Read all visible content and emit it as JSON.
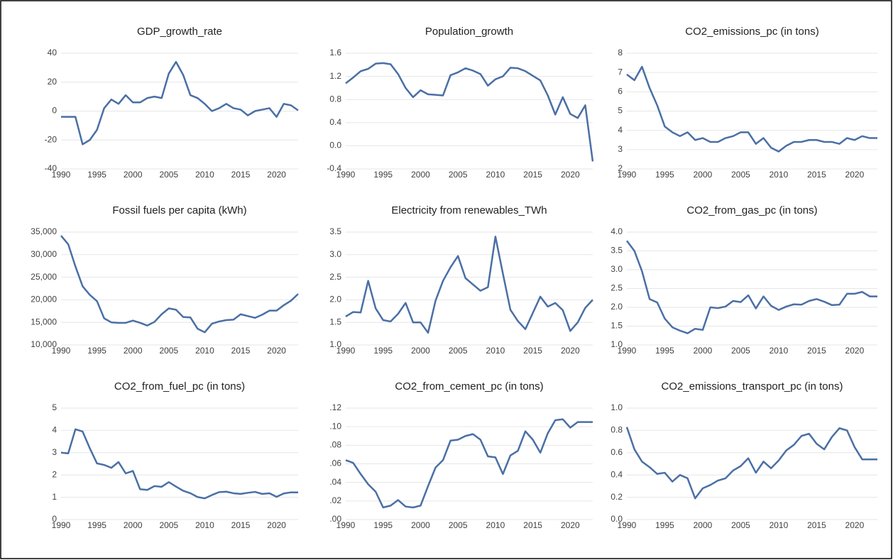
{
  "chart_data": [
    {
      "type": "line",
      "title": "GDP_growth_rate",
      "xlim": [
        1990,
        2023
      ],
      "xticks": [
        1990,
        1995,
        2000,
        2005,
        2010,
        2015,
        2020
      ],
      "ylim": [
        -40,
        40
      ],
      "yticks": [
        -40,
        -20,
        0,
        20,
        40
      ],
      "grid": true,
      "color": "#4a6fa5",
      "x": [
        1990,
        1991,
        1992,
        1993,
        1994,
        1995,
        1996,
        1997,
        1998,
        1999,
        2000,
        2001,
        2002,
        2003,
        2004,
        2005,
        2006,
        2007,
        2008,
        2009,
        2010,
        2011,
        2012,
        2013,
        2014,
        2015,
        2016,
        2017,
        2018,
        2019,
        2020,
        2021,
        2022,
        2023
      ],
      "values": [
        -4,
        -4,
        -4,
        -23,
        -20,
        -13,
        2,
        8,
        5,
        11,
        6,
        6,
        9,
        10,
        9,
        26,
        34,
        25,
        11,
        9,
        5,
        0,
        2,
        5,
        2,
        1,
        -3,
        0,
        1,
        2,
        -4,
        5,
        4,
        0.5
      ]
    },
    {
      "type": "line",
      "title": "Population_growth",
      "xlim": [
        1990,
        2023
      ],
      "xticks": [
        1990,
        1995,
        2000,
        2005,
        2010,
        2015,
        2020
      ],
      "ylim": [
        -0.4,
        1.6
      ],
      "yticks": [
        -0.4,
        {
          "value": 0,
          "label": "0.0"
        },
        0.4,
        0.8,
        1.2,
        1.6
      ],
      "grid": true,
      "color": "#4a6fa5",
      "x": [
        1990,
        1991,
        1992,
        1993,
        1994,
        1995,
        1996,
        1997,
        1998,
        1999,
        2000,
        2001,
        2002,
        2003,
        2004,
        2005,
        2006,
        2007,
        2008,
        2009,
        2010,
        2011,
        2012,
        2013,
        2014,
        2015,
        2016,
        2017,
        2018,
        2019,
        2020,
        2021,
        2022,
        2023
      ],
      "values": [
        1.08,
        1.18,
        1.29,
        1.33,
        1.42,
        1.43,
        1.41,
        1.24,
        1.0,
        0.84,
        0.96,
        0.89,
        0.88,
        0.87,
        1.22,
        1.27,
        1.34,
        1.3,
        1.24,
        1.04,
        1.15,
        1.2,
        1.35,
        1.34,
        1.29,
        1.21,
        1.13,
        0.87,
        0.54,
        0.84,
        0.55,
        0.48,
        0.7,
        -0.27
      ]
    },
    {
      "type": "line",
      "title": "CO2_emissions_pc (in tons)",
      "xlim": [
        1990,
        2023
      ],
      "xticks": [
        1990,
        1995,
        2000,
        2005,
        2010,
        2015,
        2020
      ],
      "ylim": [
        2,
        8
      ],
      "yticks": [
        2,
        3,
        4,
        5,
        6,
        7,
        8
      ],
      "grid": true,
      "color": "#4a6fa5",
      "x": [
        1990,
        1991,
        1992,
        1993,
        1994,
        1995,
        1996,
        1997,
        1998,
        1999,
        2000,
        2001,
        2002,
        2003,
        2004,
        2005,
        2006,
        2007,
        2008,
        2009,
        2010,
        2011,
        2012,
        2013,
        2014,
        2015,
        2016,
        2017,
        2018,
        2019,
        2020,
        2021,
        2022,
        2023
      ],
      "values": [
        6.9,
        6.6,
        7.3,
        6.2,
        5.3,
        4.2,
        3.9,
        3.7,
        3.9,
        3.5,
        3.6,
        3.4,
        3.4,
        3.6,
        3.7,
        3.9,
        3.9,
        3.3,
        3.6,
        3.1,
        2.9,
        3.2,
        3.4,
        3.4,
        3.5,
        3.5,
        3.4,
        3.4,
        3.3,
        3.6,
        3.5,
        3.7,
        3.6,
        3.6
      ]
    },
    {
      "type": "line",
      "title": "Fossil fuels per capita (kWh)",
      "xlim": [
        1990,
        2023
      ],
      "xticks": [
        1990,
        1995,
        2000,
        2005,
        2010,
        2015,
        2020
      ],
      "ylim": [
        10000,
        35000
      ],
      "yticks": [
        {
          "value": 10000,
          "label": "10,000"
        },
        {
          "value": 15000,
          "label": "15,000"
        },
        {
          "value": 20000,
          "label": "20,000"
        },
        {
          "value": 25000,
          "label": "25,000"
        },
        {
          "value": 30000,
          "label": "30,000"
        },
        {
          "value": 35000,
          "label": "35,000"
        }
      ],
      "grid": true,
      "color": "#4a6fa5",
      "x": [
        1990,
        1991,
        1992,
        1993,
        1994,
        1995,
        1996,
        1997,
        1998,
        1999,
        2000,
        2001,
        2002,
        2003,
        2004,
        2005,
        2006,
        2007,
        2008,
        2009,
        2010,
        2011,
        2012,
        2013,
        2014,
        2015,
        2016,
        2017,
        2018,
        2019,
        2020,
        2021,
        2022,
        2023
      ],
      "values": [
        34200,
        32300,
        27400,
        23000,
        21100,
        19700,
        15900,
        15000,
        14900,
        14900,
        15400,
        14900,
        14300,
        15100,
        16800,
        18100,
        17800,
        16200,
        16100,
        13600,
        12800,
        14700,
        15200,
        15500,
        15600,
        16800,
        16400,
        16000,
        16700,
        17600,
        17600,
        18800,
        19800,
        21300
      ]
    },
    {
      "type": "line",
      "title": "Electricity from renewables_TWh",
      "xlim": [
        1990,
        2023
      ],
      "xticks": [
        1990,
        1995,
        2000,
        2005,
        2010,
        2015,
        2020
      ],
      "ylim": [
        1.0,
        3.5
      ],
      "yticks": [
        {
          "value": 1,
          "label": "1.0"
        },
        1.5,
        {
          "value": 2,
          "label": "2.0"
        },
        2.5,
        {
          "value": 3,
          "label": "3.0"
        },
        3.5
      ],
      "grid": true,
      "color": "#4a6fa5",
      "x": [
        1990,
        1991,
        1992,
        1993,
        1994,
        1995,
        1996,
        1997,
        1998,
        1999,
        2000,
        2001,
        2002,
        2003,
        2004,
        2005,
        2006,
        2007,
        2008,
        2009,
        2010,
        2011,
        2012,
        2013,
        2014,
        2015,
        2016,
        2017,
        2018,
        2019,
        2020,
        2021,
        2022,
        2023
      ],
      "values": [
        1.63,
        1.73,
        1.72,
        2.42,
        1.81,
        1.55,
        1.52,
        1.69,
        1.93,
        1.5,
        1.5,
        1.27,
        1.98,
        2.42,
        2.72,
        2.97,
        2.48,
        2.34,
        2.2,
        2.28,
        3.4,
        2.58,
        1.78,
        1.53,
        1.35,
        1.71,
        2.07,
        1.85,
        1.93,
        1.77,
        1.31,
        1.5,
        1.82,
        2.0
      ]
    },
    {
      "type": "line",
      "title": "CO2_from_gas_pc (in tons)",
      "xlim": [
        1990,
        2023
      ],
      "xticks": [
        1990,
        1995,
        2000,
        2005,
        2010,
        2015,
        2020
      ],
      "ylim": [
        1.0,
        4.0
      ],
      "yticks": [
        {
          "value": 1,
          "label": "1.0"
        },
        1.5,
        {
          "value": 2,
          "label": "2.0"
        },
        2.5,
        {
          "value": 3,
          "label": "3.0"
        },
        3.5,
        {
          "value": 4,
          "label": "4.0"
        }
      ],
      "grid": true,
      "color": "#4a6fa5",
      "x": [
        1990,
        1991,
        1992,
        1993,
        1994,
        1995,
        1996,
        1997,
        1998,
        1999,
        2000,
        2001,
        2002,
        2003,
        2004,
        2005,
        2006,
        2007,
        2008,
        2009,
        2010,
        2011,
        2012,
        2013,
        2014,
        2015,
        2016,
        2017,
        2018,
        2019,
        2020,
        2021,
        2022,
        2023
      ],
      "values": [
        3.77,
        3.5,
        2.96,
        2.22,
        2.13,
        1.7,
        1.47,
        1.38,
        1.31,
        1.43,
        1.4,
        2.0,
        1.98,
        2.02,
        2.17,
        2.14,
        2.32,
        1.97,
        2.29,
        2.04,
        1.93,
        2.02,
        2.08,
        2.07,
        2.17,
        2.22,
        2.15,
        2.06,
        2.07,
        2.36,
        2.36,
        2.41,
        2.29,
        2.29
      ]
    },
    {
      "type": "line",
      "title": "CO2_from_fuel_pc (in tons)",
      "xlim": [
        1990,
        2023
      ],
      "xticks": [
        1990,
        1995,
        2000,
        2005,
        2010,
        2015,
        2020
      ],
      "ylim": [
        0,
        5
      ],
      "yticks": [
        0,
        1,
        2,
        3,
        4,
        5
      ],
      "grid": true,
      "color": "#4a6fa5",
      "x": [
        1990,
        1991,
        1992,
        1993,
        1994,
        1995,
        1996,
        1997,
        1998,
        1999,
        2000,
        2001,
        2002,
        2003,
        2004,
        2005,
        2006,
        2007,
        2008,
        2009,
        2010,
        2011,
        2012,
        2013,
        2014,
        2015,
        2016,
        2017,
        2018,
        2019,
        2020,
        2021,
        2022,
        2023
      ],
      "values": [
        3.0,
        2.97,
        4.05,
        3.95,
        3.2,
        2.52,
        2.45,
        2.32,
        2.58,
        2.07,
        2.18,
        1.36,
        1.33,
        1.5,
        1.47,
        1.68,
        1.48,
        1.29,
        1.18,
        1.01,
        0.95,
        1.1,
        1.23,
        1.25,
        1.18,
        1.15,
        1.2,
        1.24,
        1.15,
        1.18,
        1.02,
        1.17,
        1.22,
        1.22
      ]
    },
    {
      "type": "line",
      "title": "CO2_from_cement_pc (in tons)",
      "xlim": [
        1990,
        2023
      ],
      "xticks": [
        1990,
        1995,
        2000,
        2005,
        2010,
        2015,
        2020
      ],
      "ylim": [
        0,
        0.12
      ],
      "yticks": [
        {
          "value": 0,
          "label": ".00"
        },
        {
          "value": 0.02,
          "label": ".02"
        },
        {
          "value": 0.04,
          "label": ".04"
        },
        {
          "value": 0.06,
          "label": ".06"
        },
        {
          "value": 0.08,
          "label": ".08"
        },
        {
          "value": 0.1,
          "label": ".10"
        },
        {
          "value": 0.12,
          "label": ".12"
        }
      ],
      "grid": true,
      "color": "#4a6fa5",
      "x": [
        1990,
        1991,
        1992,
        1993,
        1994,
        1995,
        1996,
        1997,
        1998,
        1999,
        2000,
        2001,
        2002,
        2003,
        2004,
        2005,
        2006,
        2007,
        2008,
        2009,
        2010,
        2011,
        2012,
        2013,
        2014,
        2015,
        2016,
        2017,
        2018,
        2019,
        2020,
        2021,
        2022,
        2023
      ],
      "values": [
        0.064,
        0.061,
        0.049,
        0.038,
        0.03,
        0.013,
        0.015,
        0.021,
        0.014,
        0.013,
        0.015,
        0.036,
        0.056,
        0.064,
        0.085,
        0.086,
        0.09,
        0.092,
        0.086,
        0.068,
        0.067,
        0.049,
        0.069,
        0.074,
        0.095,
        0.086,
        0.072,
        0.093,
        0.107,
        0.108,
        0.099,
        0.105,
        0.105,
        0.105
      ]
    },
    {
      "type": "line",
      "title": "CO2_emissions_transport_pc (in tons)",
      "xlim": [
        1990,
        2023
      ],
      "xticks": [
        1990,
        1995,
        2000,
        2005,
        2010,
        2015,
        2020
      ],
      "ylim": [
        0,
        1.0
      ],
      "yticks": [
        {
          "value": 0,
          "label": "0.0"
        },
        0.2,
        0.4,
        0.6,
        0.8,
        {
          "value": 1,
          "label": "1.0"
        }
      ],
      "grid": true,
      "color": "#4a6fa5",
      "x": [
        1990,
        1991,
        1992,
        1993,
        1994,
        1995,
        1996,
        1997,
        1998,
        1999,
        2000,
        2001,
        2002,
        2003,
        2004,
        2005,
        2006,
        2007,
        2008,
        2009,
        2010,
        2011,
        2012,
        2013,
        2014,
        2015,
        2016,
        2017,
        2018,
        2019,
        2020,
        2021,
        2022,
        2023
      ],
      "values": [
        0.83,
        0.63,
        0.52,
        0.47,
        0.41,
        0.42,
        0.34,
        0.4,
        0.37,
        0.19,
        0.28,
        0.31,
        0.35,
        0.37,
        0.44,
        0.48,
        0.55,
        0.42,
        0.52,
        0.46,
        0.53,
        0.62,
        0.67,
        0.75,
        0.77,
        0.68,
        0.63,
        0.74,
        0.82,
        0.8,
        0.65,
        0.54,
        0.54,
        0.54
      ]
    }
  ]
}
